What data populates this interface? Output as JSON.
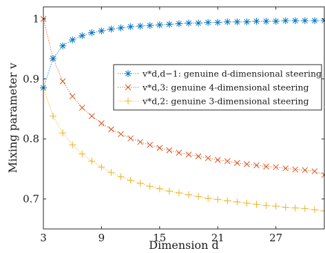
{
  "chart_data": {
    "type": "line",
    "xlabel": "Dimension d",
    "ylabel": "Mixing parameter v",
    "xlim": [
      3,
      32
    ],
    "ylim": [
      0.65,
      1.02
    ],
    "xticks": [
      3,
      9,
      15,
      21,
      27
    ],
    "xtick_labels": [
      "3",
      "9",
      "15",
      "21",
      "27"
    ],
    "yticks": [
      0.7,
      0.8,
      0.9,
      1.0
    ],
    "ytick_labels": [
      "0.7",
      "0.8",
      "0.9",
      "1"
    ],
    "grid": false,
    "legend_position": "center-right",
    "x": [
      3,
      4,
      5,
      6,
      7,
      8,
      9,
      10,
      11,
      12,
      13,
      14,
      15,
      16,
      17,
      18,
      19,
      20,
      21,
      22,
      23,
      24,
      25,
      26,
      27,
      28,
      29,
      30,
      31,
      32
    ],
    "series": [
      {
        "name": "v*_{d,d-1}: genuine d-dimensional steering",
        "legend_label": "v*d,d−1: genuine d-dimensional steering",
        "color": "#0072BD",
        "marker": "asterisk",
        "values": [
          0.885,
          0.934,
          0.955,
          0.965,
          0.972,
          0.977,
          0.98,
          0.983,
          0.985,
          0.987,
          0.988,
          0.989,
          0.99,
          0.991,
          0.992,
          0.993,
          0.993,
          0.994,
          0.994,
          0.995,
          0.995,
          0.995,
          0.996,
          0.996,
          0.996,
          0.997,
          0.997,
          0.997,
          0.997,
          0.997
        ]
      },
      {
        "name": "v*_{d,3}: genuine 4-dimensional steering",
        "legend_label": "v*d,3: genuine 4-dimensional steering",
        "color": "#D95319",
        "marker": "x",
        "values": [
          1.0,
          0.934,
          0.896,
          0.871,
          0.852,
          0.838,
          0.826,
          0.816,
          0.808,
          0.801,
          0.795,
          0.79,
          0.785,
          0.781,
          0.777,
          0.774,
          0.771,
          0.768,
          0.765,
          0.763,
          0.76,
          0.758,
          0.756,
          0.754,
          0.753,
          0.751,
          0.749,
          0.748,
          0.746,
          0.74
        ]
      },
      {
        "name": "v*_{d,2}: genuine 3-dimensional steering",
        "legend_label": "v*d,2: genuine 3-dimensional steering",
        "color": "#EDB120",
        "marker": "plus",
        "values": [
          0.885,
          0.838,
          0.81,
          0.79,
          0.775,
          0.763,
          0.753,
          0.744,
          0.737,
          0.731,
          0.726,
          0.721,
          0.717,
          0.713,
          0.71,
          0.707,
          0.704,
          0.701,
          0.699,
          0.697,
          0.695,
          0.693,
          0.691,
          0.689,
          0.688,
          0.686,
          0.685,
          0.684,
          0.682,
          0.68
        ]
      }
    ]
  }
}
